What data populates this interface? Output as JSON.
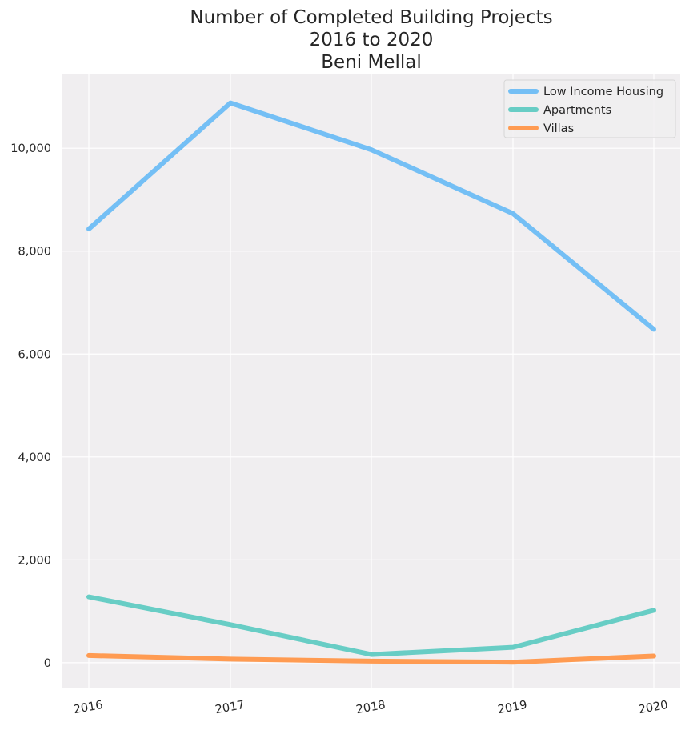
{
  "chart_data": {
    "type": "line",
    "title_lines": [
      "Number of Completed Building Projects",
      "2016 to 2020",
      "Beni Mellal"
    ],
    "x": [
      "2016",
      "2017",
      "2018",
      "2019",
      "2020"
    ],
    "series": [
      {
        "name": "Low Income Housing",
        "color": "#74bff5",
        "values": [
          8430,
          10880,
          9970,
          8730,
          6480
        ]
      },
      {
        "name": "Apartments",
        "color": "#68cdc5",
        "values": [
          1280,
          740,
          160,
          300,
          1020
        ]
      },
      {
        "name": "Villas",
        "color": "#ff9b52",
        "values": [
          140,
          70,
          30,
          10,
          130
        ]
      }
    ],
    "y_ticks": [
      0,
      2000,
      4000,
      6000,
      8000,
      10000
    ],
    "y_tick_labels": [
      "0",
      "2,000",
      "4,000",
      "6,000",
      "8,000",
      "10,000"
    ],
    "ylim": [
      -500,
      11450
    ],
    "xlabel": "",
    "ylabel": "",
    "grid": true,
    "legend_position": "top-right",
    "background": "#f0eef0"
  }
}
